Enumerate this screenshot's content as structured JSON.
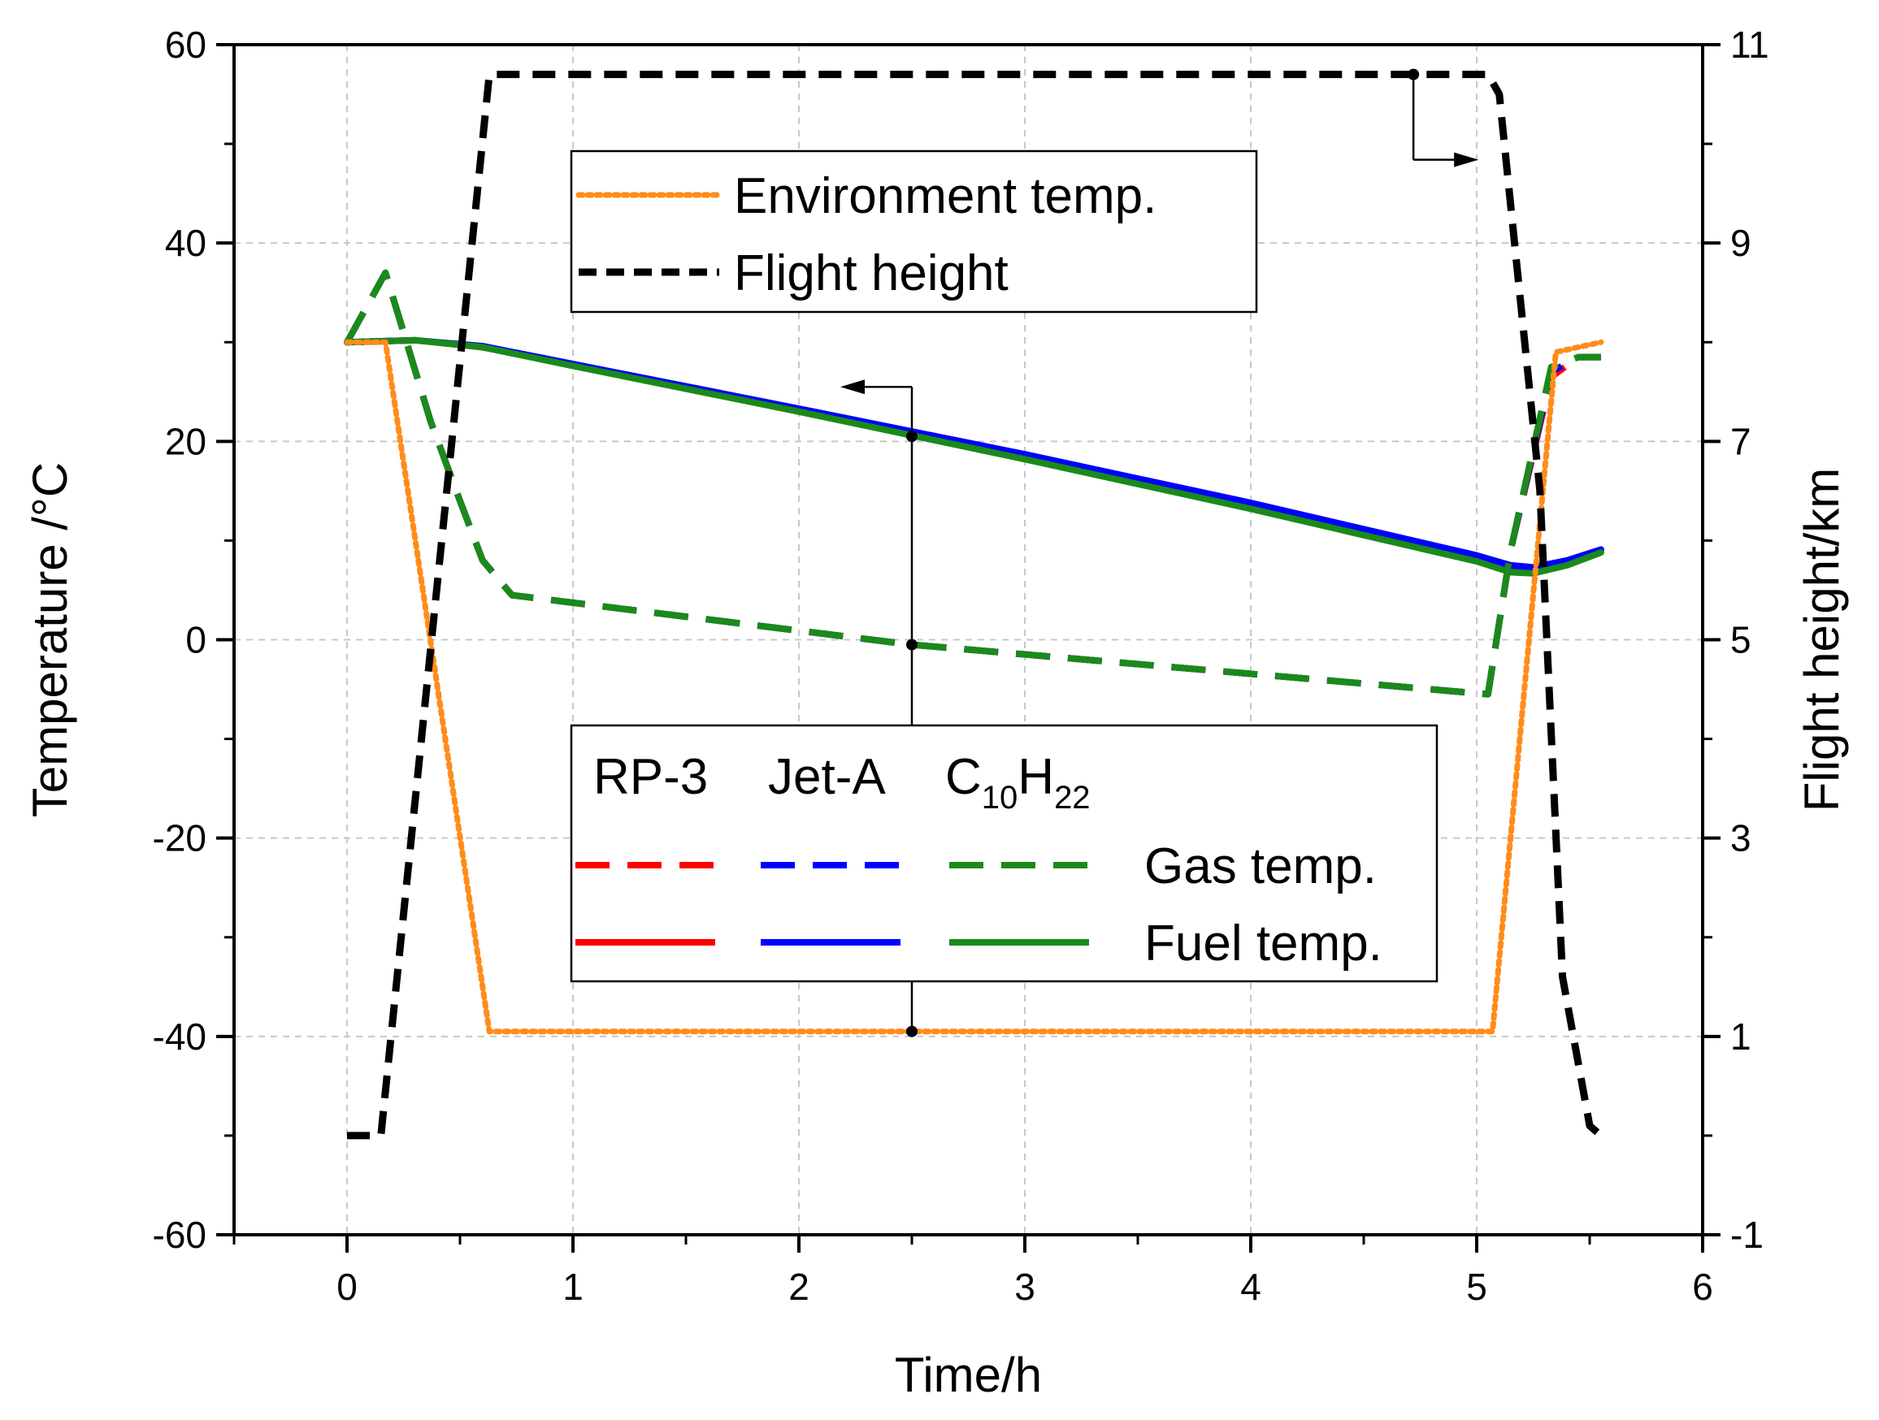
{
  "chart_data": {
    "type": "line",
    "xlabel": "Time/h",
    "ylabel": "Temperature /°C",
    "y2label": "Flight height/km",
    "xlim": [
      -0.5,
      6
    ],
    "ylim": [
      -60,
      60
    ],
    "y2lim": [
      -1,
      11
    ],
    "grid": true,
    "x_ticks": [
      "0",
      "1",
      "2",
      "3",
      "4",
      "5",
      "6"
    ],
    "y_ticks": [
      "-60",
      "-40",
      "-20",
      "0",
      "20",
      "40",
      "60"
    ],
    "y2_ticks": [
      "-1",
      "1",
      "3",
      "5",
      "7",
      "9",
      "11"
    ],
    "legend_top": {
      "position": "top-center",
      "entries": [
        {
          "label": "Environment temp.",
          "series": "environment_temp"
        },
        {
          "label": "Flight height",
          "series": "flight_height"
        }
      ]
    },
    "legend_bottom": {
      "position": "bottom-center",
      "fuel_names": [
        "RP-3",
        "Jet-A",
        "C",
        "10",
        "H",
        "22"
      ],
      "row_labels": [
        "Gas temp.",
        "Fuel temp."
      ]
    },
    "series": [
      {
        "name": "environment_temp",
        "label": "Environment temp.",
        "color": "#ff8c1a",
        "style": "dotted",
        "axis": "left",
        "x": [
          0,
          0.17,
          0.63,
          5.07,
          5.35,
          5.55
        ],
        "y": [
          30,
          30,
          -39.5,
          -39.5,
          29,
          30
        ]
      },
      {
        "name": "flight_height",
        "label": "Flight height",
        "color": "#000000",
        "style": "dash",
        "axis": "right",
        "x": [
          0,
          0.15,
          0.63,
          5.05,
          5.1,
          5.28,
          5.38,
          5.5,
          5.55
        ],
        "y": [
          0,
          0,
          10.7,
          10.7,
          10.5,
          6.5,
          1.6,
          0.1,
          0
        ]
      },
      {
        "name": "gas_temp_rp3",
        "label": "Gas temp. RP-3",
        "color": "#ff0000",
        "style": "dash",
        "axis": "left",
        "x": [
          0,
          0.17,
          0.37,
          0.5,
          0.6,
          0.73,
          2.5,
          5.05,
          5.15,
          5.33,
          5.45,
          5.55
        ],
        "y": [
          30,
          37,
          22,
          14,
          8,
          4.5,
          -0.5,
          -5.5,
          9,
          26.5,
          28.5,
          28.5
        ]
      },
      {
        "name": "gas_temp_jeta",
        "label": "Gas temp. Jet-A",
        "color": "#0000ff",
        "style": "dash",
        "axis": "left",
        "x": [
          0,
          0.17,
          0.37,
          0.5,
          0.6,
          0.73,
          2.5,
          5.05,
          5.15,
          5.33,
          5.45,
          5.55
        ],
        "y": [
          30,
          37,
          22,
          14,
          8,
          4.5,
          -0.5,
          -5.5,
          9,
          27,
          28.5,
          28.5
        ]
      },
      {
        "name": "gas_temp_c10h22",
        "label": "Gas temp. C10H22",
        "color": "#1a8a1a",
        "style": "dash",
        "axis": "left",
        "x": [
          0,
          0.17,
          0.37,
          0.5,
          0.6,
          0.73,
          2.5,
          5.05,
          5.15,
          5.33,
          5.45,
          5.55
        ],
        "y": [
          30,
          37,
          22,
          14,
          8,
          4.5,
          -0.5,
          -5.5,
          9,
          27.5,
          28.5,
          28.5
        ]
      },
      {
        "name": "fuel_temp_rp3",
        "label": "Fuel temp. RP-3",
        "color": "#ff0000",
        "style": "solid",
        "axis": "left",
        "x": [
          0,
          0.3,
          0.6,
          1.0,
          2.0,
          3.0,
          4.0,
          5.0,
          5.15,
          5.25,
          5.4,
          5.55
        ],
        "y": [
          30,
          30.2,
          29.5,
          27.7,
          23,
          18.3,
          13.4,
          8.2,
          7.2,
          7.1,
          7.8,
          9
        ]
      },
      {
        "name": "fuel_temp_jeta",
        "label": "Fuel temp. Jet-A",
        "color": "#0000ff",
        "style": "solid",
        "axis": "left",
        "x": [
          0,
          0.3,
          0.6,
          1.0,
          2.0,
          3.0,
          4.0,
          5.0,
          5.15,
          5.25,
          5.4,
          5.55
        ],
        "y": [
          30,
          30.2,
          29.6,
          27.8,
          23.3,
          18.7,
          13.8,
          8.5,
          7.5,
          7.3,
          8.0,
          9.1
        ]
      },
      {
        "name": "fuel_temp_c10h22",
        "label": "Fuel temp. C10H22",
        "color": "#1a8a1a",
        "style": "solid",
        "axis": "left",
        "x": [
          0,
          0.3,
          0.6,
          1.0,
          2.0,
          3.0,
          4.0,
          5.0,
          5.15,
          5.25,
          5.4,
          5.55
        ],
        "y": [
          30,
          30.2,
          29.5,
          27.6,
          23,
          18.2,
          13.2,
          7.9,
          6.8,
          6.7,
          7.5,
          8.8
        ]
      }
    ],
    "annotations": [
      {
        "type": "marker_line",
        "x": 2.5,
        "points_y": [
          20.5,
          -0.5,
          -39.5
        ],
        "arrow": "left",
        "arrow_y": 25.5
      },
      {
        "type": "marker",
        "x": 4.72,
        "y2": 10.7,
        "arrow": "right"
      }
    ]
  }
}
